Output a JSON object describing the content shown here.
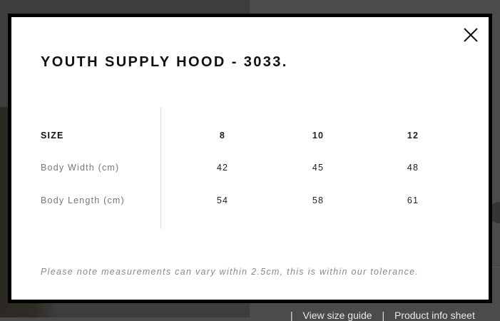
{
  "modal": {
    "title": "YOUTH SUPPLY HOOD - 3033.",
    "close_icon": "close-x-icon",
    "table": {
      "header": [
        "SIZE",
        "8",
        "10",
        "12"
      ],
      "rows": [
        {
          "label": "Body Width (cm)",
          "values": [
            "42",
            "45",
            "48"
          ]
        },
        {
          "label": "Body Length (cm)",
          "values": [
            "54",
            "58",
            "61"
          ]
        }
      ]
    },
    "note": "Please note measurements can vary within 2.5cm, this is within our tolerance."
  },
  "background": {
    "links": [
      "View size guide",
      "Product info sheet"
    ],
    "link_separator": "|"
  }
}
